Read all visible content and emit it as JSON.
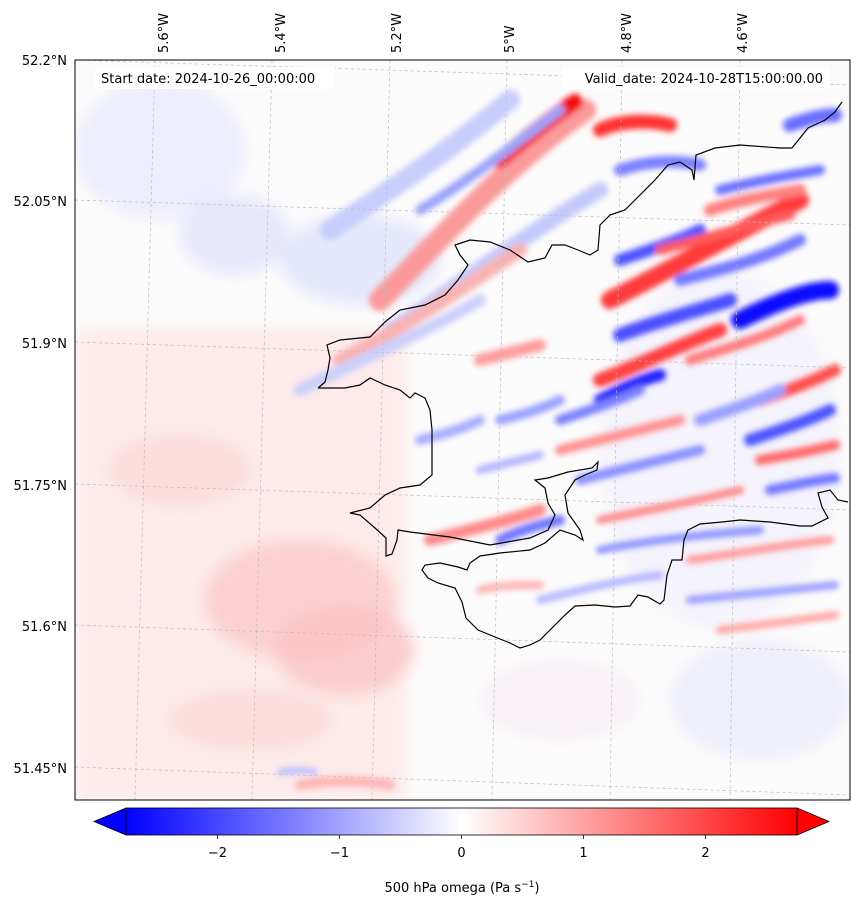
{
  "header": {
    "start_date": "Start date: 2024-10-26_00:00:00",
    "valid_date": "Valid_date: 2024-10-28T15:00:00.00"
  },
  "map": {
    "lon_labels": [
      "5.6°W",
      "5.4°W",
      "5.2°W",
      "5°W",
      "4.8°W",
      "4.6°W"
    ],
    "lat_labels": [
      "52.2°N",
      "52.05°N",
      "51.9°N",
      "51.75°N",
      "51.6°N",
      "51.45°N"
    ],
    "field": "500 hPa omega",
    "extent": {
      "lon": [
        -5.75,
        -4.45
      ],
      "lat": [
        51.42,
        52.2
      ]
    },
    "gridlines": true
  },
  "colorbar": {
    "label": "500 hPa omega (Pa s",
    "label_sup": "−1",
    "label_close": ")",
    "ticks": [
      "−2",
      "−1",
      "0",
      "1",
      "2"
    ],
    "range": [
      -2.75,
      2.75
    ],
    "extend": "both",
    "colormap": "bwr",
    "colors": {
      "negative": "#0000ff",
      "zero": "#ffffff",
      "positive": "#ff0000"
    }
  }
}
